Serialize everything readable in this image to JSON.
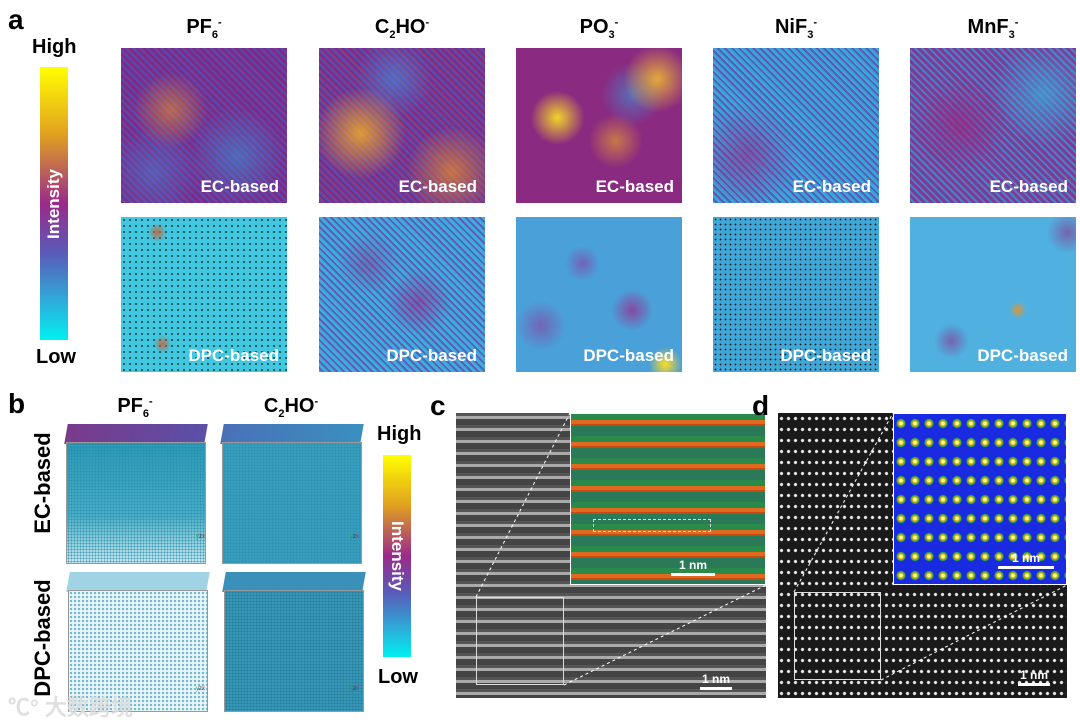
{
  "panel_a": {
    "label": "a",
    "colorbar": {
      "high": "High",
      "low": "Low",
      "title": "Intensity"
    },
    "columns": [
      {
        "base": "PF",
        "sub": "6",
        "sup": "-"
      },
      {
        "base": "C",
        "sub": "2",
        "base2": "HO",
        "sup": "-"
      },
      {
        "base": "PO",
        "sub": "3",
        "sup": "-"
      },
      {
        "base": "NiF",
        "sub": "3",
        "sup": "-"
      },
      {
        "base": "MnF",
        "sub": "3",
        "sup": "-"
      }
    ],
    "row_captions": [
      "EC-based",
      "DPC-based"
    ]
  },
  "panel_b": {
    "label": "b",
    "columns": [
      {
        "base": "PF",
        "sub": "6",
        "sup": "-"
      },
      {
        "base": "C",
        "sub": "2",
        "base2": "HO",
        "sup": "-"
      }
    ],
    "rows": [
      "EC-based",
      "DPC-based"
    ],
    "colorbar": {
      "high": "High",
      "low": "Low",
      "title": "Intensity"
    },
    "axis_labels": {
      "x": "x",
      "y": "y",
      "z": "z"
    }
  },
  "panel_c": {
    "label": "c",
    "scale_main": "1 nm",
    "scale_inset": "1 nm"
  },
  "panel_d": {
    "label": "d",
    "scale_main": "1 nm",
    "scale_inset": "1 nm"
  },
  "watermark": "大数跨境",
  "colors": {
    "high": "#ffff00",
    "mid": "#9a2a8a",
    "low": "#00f0f0"
  }
}
